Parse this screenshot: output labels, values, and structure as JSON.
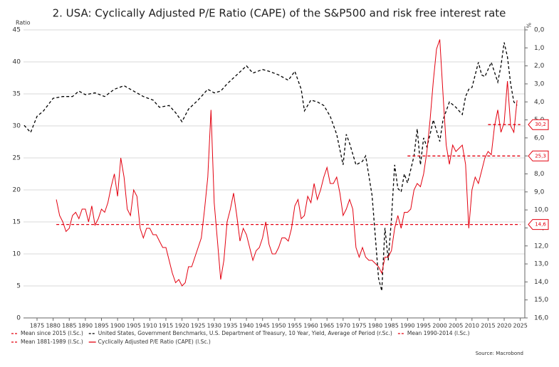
{
  "chart_data": {
    "type": "line",
    "title": "2. USA: Cyclically Adjusted P/E Ratio (CAPE) of the S&P500 and risk free interest rate",
    "y_label": "Ratio",
    "y2_label": "%",
    "xlim": [
      1870.8,
      2026.4
    ],
    "xticks": [
      1875,
      1880,
      1885,
      1890,
      1895,
      1900,
      1905,
      1910,
      1915,
      1920,
      1925,
      1930,
      1935,
      1940,
      1945,
      1950,
      1955,
      1960,
      1965,
      1970,
      1975,
      1980,
      1985,
      1990,
      1995,
      2000,
      2005,
      2010,
      2015,
      2020,
      2025
    ],
    "ylim": [
      0,
      45
    ],
    "yticks": [
      0,
      5,
      10,
      15,
      20,
      25,
      30,
      35,
      40,
      45
    ],
    "y2lim": [
      16,
      0
    ],
    "y2ticks": [
      {
        "value": 0,
        "label": "0,0"
      },
      {
        "value": 1,
        "label": "1,0"
      },
      {
        "value": 2,
        "label": "2,0"
      },
      {
        "value": 3,
        "label": "3,0"
      },
      {
        "value": 4,
        "label": "4,0"
      },
      {
        "value": 5,
        "label": "5,0"
      },
      {
        "value": 6,
        "label": "6,0"
      },
      {
        "value": 7,
        "label": "7,0"
      },
      {
        "value": 8,
        "label": "8,0"
      },
      {
        "value": 9,
        "label": "9,0"
      },
      {
        "value": 10,
        "label": "10,0"
      },
      {
        "value": 11,
        "label": "11,0"
      },
      {
        "value": 12,
        "label": "12,0"
      },
      {
        "value": 13,
        "label": "13,0"
      },
      {
        "value": 14,
        "label": "14,0"
      },
      {
        "value": 15,
        "label": "15,0"
      },
      {
        "value": 16,
        "label": "16,0"
      }
    ],
    "grid": true,
    "series": [
      {
        "name": "Mean since 2015 (l.Sc.)",
        "color": "#e3000f",
        "dashed": true,
        "x": [
          2015,
          2025
        ],
        "values": [
          30.2,
          30.2
        ],
        "value_labels": [
          null,
          "30,2"
        ]
      },
      {
        "name": "United States, Government Benchmarks, U.S. Department of Treasury, 10 Year, Yield, Average of Period (r.Sc.)",
        "color": "#000000",
        "dashed": true,
        "axis": "y2",
        "x": [
          1871,
          1873,
          1875,
          1877,
          1880,
          1883,
          1886,
          1888,
          1890,
          1893,
          1896,
          1899,
          1902,
          1905,
          1908,
          1911,
          1913,
          1916,
          1918,
          1920,
          1922,
          1925,
          1928,
          1930,
          1932,
          1934,
          1937,
          1940,
          1942,
          1945,
          1947,
          1950,
          1953,
          1955,
          1957,
          1958,
          1960,
          1962,
          1964,
          1966,
          1968,
          1970,
          1971,
          1972,
          1974,
          1976,
          1977,
          1979,
          1980,
          1981,
          1982,
          1983,
          1984,
          1985,
          1986,
          1987,
          1988,
          1989,
          1990,
          1992,
          1993,
          1994,
          1995,
          1996,
          1997,
          1998,
          2000,
          2001,
          2003,
          2005,
          2007,
          2008,
          2009,
          2010,
          2012,
          2013,
          2014,
          2016,
          2018,
          2019,
          2020,
          2021,
          2022,
          2023,
          2024
        ],
        "values": [
          5.3,
          5.7,
          4.8,
          4.5,
          3.8,
          3.7,
          3.7,
          3.4,
          3.6,
          3.5,
          3.7,
          3.3,
          3.1,
          3.4,
          3.7,
          3.9,
          4.3,
          4.2,
          4.6,
          5.1,
          4.4,
          3.9,
          3.3,
          3.5,
          3.4,
          3.0,
          2.5,
          2.0,
          2.4,
          2.2,
          2.3,
          2.5,
          2.8,
          2.3,
          3.3,
          4.5,
          3.9,
          4.0,
          4.2,
          4.8,
          5.8,
          7.5,
          5.8,
          6.3,
          7.5,
          7.3,
          7.0,
          9.2,
          11.5,
          13.8,
          14.5,
          11,
          12.8,
          10.5,
          7.5,
          8.8,
          9.0,
          8.0,
          8.5,
          7.0,
          5.5,
          7.5,
          6.0,
          6.5,
          5.8,
          5.0,
          6.2,
          5.0,
          4.0,
          4.3,
          4.7,
          3.7,
          3.3,
          3.2,
          1.8,
          2.5,
          2.6,
          1.8,
          2.9,
          2.0,
          0.7,
          1.5,
          3.0,
          4.0,
          4.2
        ]
      },
      {
        "name": "Mean 1990-2014 (l.Sc.)",
        "color": "#e3000f",
        "dashed": true,
        "x": [
          1990,
          2025
        ],
        "values": [
          25.3,
          25.3
        ],
        "value_labels": [
          null,
          "25,3"
        ]
      },
      {
        "name": "Mean 1881-1989 (l.Sc.)",
        "color": "#e3000f",
        "dashed": true,
        "x": [
          1881,
          2025
        ],
        "values": [
          14.6,
          14.6
        ],
        "value_labels": [
          null,
          "14,6"
        ]
      },
      {
        "name": "Cyclically Adjusted P/E Ratio (CAPE) (l.Sc.)",
        "color": "#e3000f",
        "dashed": false,
        "x": [
          1881,
          1882,
          1883,
          1884,
          1885,
          1886,
          1887,
          1888,
          1889,
          1890,
          1891,
          1892,
          1893,
          1894,
          1895,
          1896,
          1897,
          1898,
          1899,
          1900,
          1901,
          1902,
          1903,
          1904,
          1905,
          1906,
          1907,
          1908,
          1909,
          1910,
          1911,
          1912,
          1913,
          1914,
          1915,
          1916,
          1917,
          1918,
          1919,
          1920,
          1921,
          1922,
          1923,
          1924,
          1925,
          1926,
          1927,
          1928,
          1929,
          1930,
          1931,
          1932,
          1933,
          1934,
          1935,
          1936,
          1937,
          1938,
          1939,
          1940,
          1941,
          1942,
          1943,
          1944,
          1945,
          1946,
          1947,
          1948,
          1949,
          1950,
          1951,
          1952,
          1953,
          1954,
          1955,
          1956,
          1957,
          1958,
          1959,
          1960,
          1961,
          1962,
          1963,
          1964,
          1965,
          1966,
          1967,
          1968,
          1969,
          1970,
          1971,
          1972,
          1973,
          1974,
          1975,
          1976,
          1977,
          1978,
          1979,
          1980,
          1981,
          1982,
          1983,
          1984,
          1985,
          1986,
          1987,
          1988,
          1989,
          1990,
          1991,
          1992,
          1993,
          1994,
          1995,
          1996,
          1997,
          1998,
          1999,
          2000,
          2001,
          2002,
          2003,
          2004,
          2005,
          2006,
          2007,
          2008,
          2009,
          2010,
          2011,
          2012,
          2013,
          2014,
          2015,
          2016,
          2017,
          2018,
          2019,
          2020,
          2021,
          2022,
          2023,
          2024
        ],
        "values": [
          18.5,
          16,
          15,
          13.5,
          14,
          16,
          16.5,
          15.5,
          17,
          17,
          15,
          17.5,
          14.5,
          15.5,
          17,
          16.5,
          18,
          20.5,
          22.5,
          19,
          25,
          22,
          17,
          16,
          20,
          19,
          14,
          12.5,
          14,
          14,
          13,
          13,
          12,
          11,
          11,
          9,
          7,
          5.5,
          6,
          5,
          5.5,
          8,
          8,
          9.5,
          11,
          12.5,
          17,
          22,
          32.5,
          18,
          12,
          6,
          9,
          15,
          17,
          19.5,
          16,
          12,
          14,
          13,
          11,
          9,
          10.5,
          11,
          12.5,
          15,
          11.5,
          10,
          10,
          11,
          12.5,
          12.5,
          12,
          14,
          17.5,
          18.5,
          15.5,
          16,
          19,
          18,
          21,
          18.5,
          20,
          22,
          23.5,
          21,
          21,
          22,
          19.5,
          16,
          17,
          18.5,
          17,
          11,
          9.5,
          11,
          9.5,
          9,
          9,
          8.5,
          8,
          7,
          9.5,
          9.5,
          10.5,
          14,
          16,
          14,
          16.5,
          16.5,
          17,
          20,
          21,
          20.5,
          22.5,
          26,
          31,
          37,
          42,
          43.5,
          35,
          27,
          24,
          27,
          26,
          26.5,
          27,
          24,
          14,
          20,
          22,
          21,
          23,
          25,
          26,
          25.5,
          30,
          32.5,
          29,
          30.5,
          37,
          30,
          29,
          34
        ]
      }
    ],
    "source": "Source: Macrobond"
  }
}
